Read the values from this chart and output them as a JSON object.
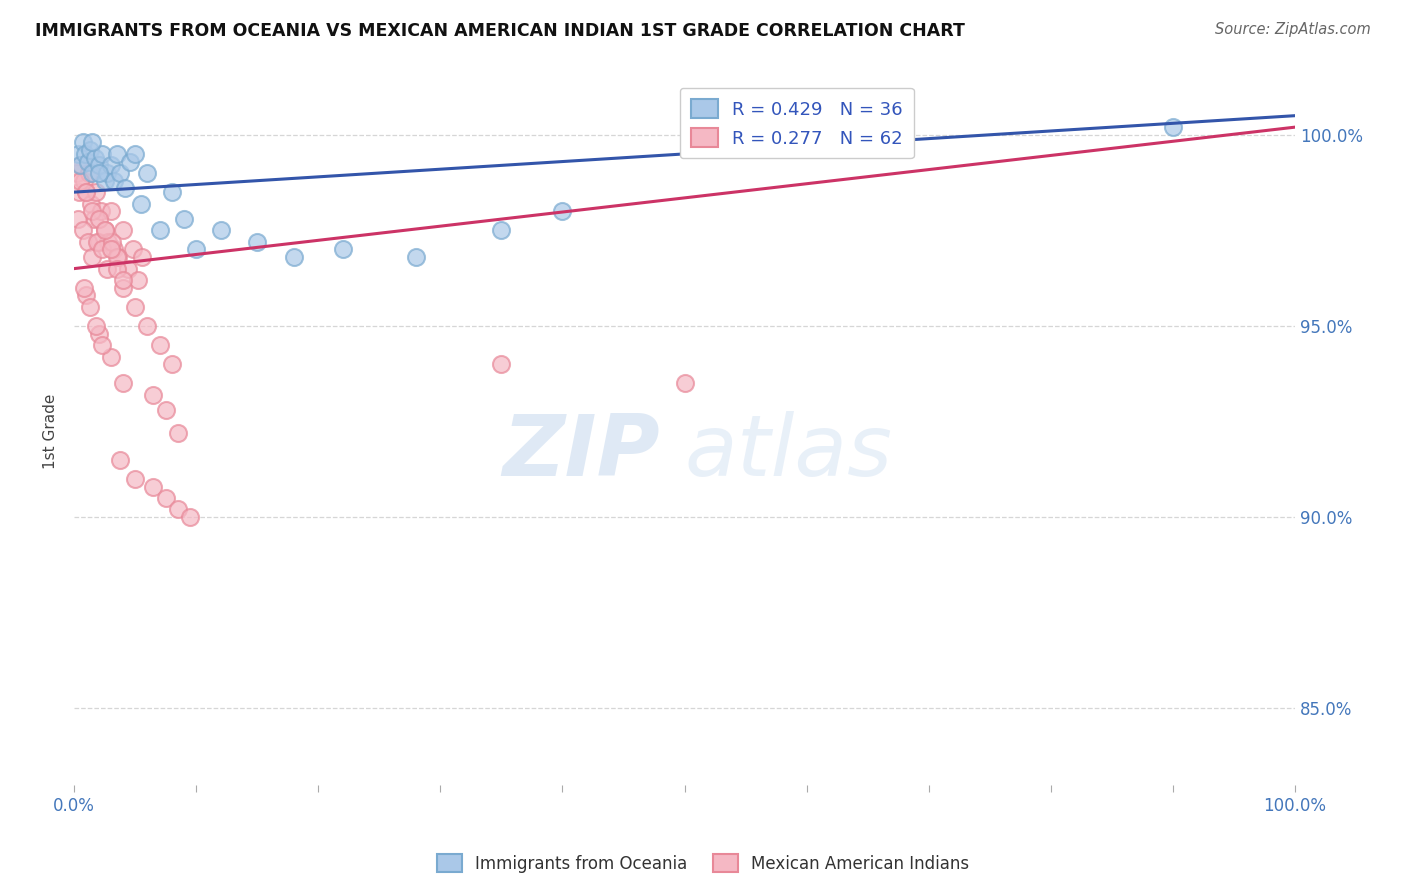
{
  "title": "IMMIGRANTS FROM OCEANIA VS MEXICAN AMERICAN INDIAN 1ST GRADE CORRELATION CHART",
  "source": "Source: ZipAtlas.com",
  "xlim": [
    0.0,
    100.0
  ],
  "ylim": [
    83.0,
    101.5
  ],
  "yticks": [
    85.0,
    90.0,
    95.0,
    100.0
  ],
  "ytick_labels": [
    "85.0%",
    "90.0%",
    "95.0%",
    "100.0%"
  ],
  "R_blue": 0.429,
  "N_blue": 36,
  "R_pink": 0.277,
  "N_pink": 62,
  "ylabel": "1st Grade",
  "legend_label_blue": "Immigrants from Oceania",
  "legend_label_pink": "Mexican American Indians",
  "blue_fill": "#aac8e8",
  "blue_edge": "#7aaad0",
  "pink_fill": "#f5b8c4",
  "pink_edge": "#e88898",
  "blue_line_color": "#3355aa",
  "pink_line_color": "#cc3366",
  "blue_trendline": [
    0.0,
    100.0,
    98.5,
    100.5
  ],
  "pink_trendline": [
    0.0,
    100.0,
    96.5,
    100.2
  ],
  "blue_x": [
    0.3,
    0.5,
    0.7,
    0.9,
    1.1,
    1.3,
    1.5,
    1.7,
    2.0,
    2.3,
    2.5,
    2.7,
    3.0,
    3.3,
    3.5,
    3.8,
    4.2,
    4.6,
    5.0,
    5.5,
    6.0,
    7.0,
    8.0,
    9.0,
    10.0,
    12.0,
    15.0,
    18.0,
    22.0,
    28.0,
    35.0,
    40.0,
    65.0,
    90.0,
    1.5,
    2.0
  ],
  "blue_y": [
    99.5,
    99.2,
    99.8,
    99.5,
    99.3,
    99.6,
    99.0,
    99.4,
    99.2,
    99.5,
    98.8,
    99.0,
    99.2,
    98.8,
    99.5,
    99.0,
    98.6,
    99.3,
    99.5,
    98.2,
    99.0,
    97.5,
    98.5,
    97.8,
    97.0,
    97.5,
    97.2,
    96.8,
    97.0,
    96.8,
    97.5,
    98.0,
    100.0,
    100.2,
    99.8,
    99.0
  ],
  "pink_x": [
    0.2,
    0.4,
    0.6,
    0.8,
    1.0,
    1.2,
    1.4,
    1.6,
    1.8,
    2.0,
    2.2,
    2.5,
    2.8,
    3.0,
    3.3,
    3.6,
    4.0,
    4.4,
    4.8,
    5.2,
    5.6,
    0.3,
    0.7,
    1.1,
    1.5,
    1.9,
    2.3,
    2.7,
    3.1,
    3.5,
    4.0,
    0.5,
    1.0,
    1.5,
    2.0,
    2.5,
    3.0,
    3.5,
    4.0,
    5.0,
    6.0,
    7.0,
    8.0,
    1.0,
    2.0,
    3.0,
    4.0,
    6.5,
    7.5,
    8.5,
    35.0,
    50.0,
    0.8,
    1.3,
    1.8,
    2.3,
    3.8,
    5.0,
    6.5,
    7.5,
    8.5,
    9.5
  ],
  "pink_y": [
    99.0,
    98.5,
    99.2,
    98.8,
    98.5,
    99.0,
    98.2,
    97.8,
    98.5,
    97.2,
    98.0,
    97.5,
    97.2,
    98.0,
    97.0,
    96.8,
    97.5,
    96.5,
    97.0,
    96.2,
    96.8,
    97.8,
    97.5,
    97.2,
    96.8,
    97.2,
    97.0,
    96.5,
    97.2,
    96.8,
    96.0,
    98.8,
    98.5,
    98.0,
    97.8,
    97.5,
    97.0,
    96.5,
    96.2,
    95.5,
    95.0,
    94.5,
    94.0,
    95.8,
    94.8,
    94.2,
    93.5,
    93.2,
    92.8,
    92.2,
    94.0,
    93.5,
    96.0,
    95.5,
    95.0,
    94.5,
    91.5,
    91.0,
    90.8,
    90.5,
    90.2,
    90.0
  ]
}
